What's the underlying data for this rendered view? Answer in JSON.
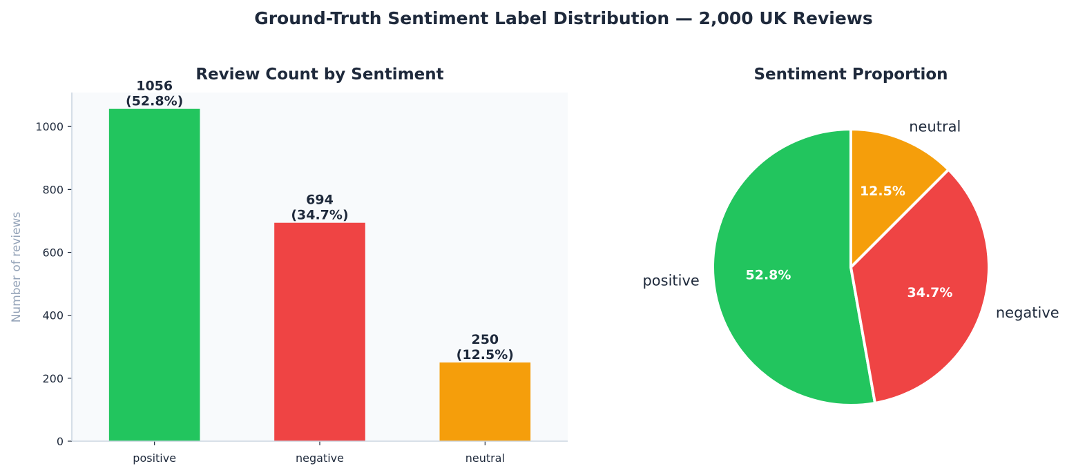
{
  "suptitle": "Ground-Truth Sentiment Label Distribution — 2,000 UK Reviews",
  "chart_data": [
    {
      "type": "bar",
      "title": "Review Count by Sentiment",
      "xlabel": "",
      "ylabel": "Number of reviews",
      "categories": [
        "positive",
        "negative",
        "neutral"
      ],
      "values": [
        1056,
        694,
        250
      ],
      "bar_labels": [
        "1056\n(52.8%)",
        "694\n(34.7%)",
        "250\n(12.5%)"
      ],
      "colors": [
        "#22c55e",
        "#ef4444",
        "#f59e0b"
      ],
      "ylim": [
        0,
        1108
      ],
      "yticks": [
        0,
        200,
        400,
        600,
        800,
        1000
      ],
      "background": "#f8fafc",
      "axis_color": "#cbd5e1",
      "grid": false
    },
    {
      "type": "pie",
      "title": "Sentiment Proportion",
      "labels": [
        "positive",
        "negative",
        "neutral"
      ],
      "values": [
        1056,
        694,
        250
      ],
      "pct_labels": [
        "52.8%",
        "34.7%",
        "12.5%"
      ],
      "colors": [
        "#22c55e",
        "#ef4444",
        "#f59e0b"
      ],
      "start_angle": "90 degrees, counter-clockwise",
      "slice_edge_color": "#ffffff"
    }
  ]
}
